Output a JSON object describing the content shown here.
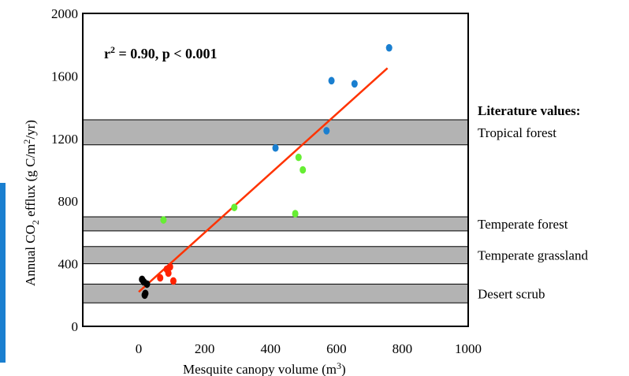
{
  "chart_data": {
    "type": "scatter",
    "xlabel_text": "Mesquite canopy volume (m",
    "xlabel_sup": "3",
    "xlabel_end": ")",
    "ylabel_parts": [
      "Annual CO",
      "2",
      " efflux (g C/m",
      "2",
      "/yr)"
    ],
    "xlim": [
      -170,
      1000
    ],
    "ylim": [
      0,
      2000
    ],
    "xticks": [
      0,
      200,
      400,
      600,
      800,
      1000
    ],
    "yticks": [
      0,
      400,
      800,
      1200,
      1600,
      2000
    ],
    "annotation": {
      "pre": "r",
      "sup": "2",
      "post": " = 0.90, p < 0.001"
    },
    "literature_title": "Literature values:",
    "bands": [
      {
        "label": "Tropical forest",
        "y0": 1160,
        "y1": 1320
      },
      {
        "label": "Temperate forest",
        "y0": 610,
        "y1": 700
      },
      {
        "label": "Temperate grassland",
        "y0": 400,
        "y1": 510
      },
      {
        "label": "Desert scrub",
        "y0": 150,
        "y1": 270
      }
    ],
    "band_color": "#b3b3b3",
    "regression": {
      "x": [
        0,
        755
      ],
      "y": [
        220,
        1650
      ],
      "color": "#ff3300"
    },
    "series": [
      {
        "color": "#000000",
        "points": [
          [
            10,
            300
          ],
          [
            25,
            270
          ],
          [
            15,
            285
          ],
          [
            20,
            210
          ],
          [
            18,
            200
          ]
        ]
      },
      {
        "color": "#ff2200",
        "points": [
          [
            65,
            310
          ],
          [
            85,
            365
          ],
          [
            95,
            380
          ],
          [
            90,
            340
          ],
          [
            105,
            290
          ]
        ]
      },
      {
        "color": "#66ee33",
        "points": [
          [
            75,
            680
          ],
          [
            290,
            760
          ],
          [
            475,
            720
          ],
          [
            485,
            1080
          ],
          [
            498,
            1000
          ]
        ]
      },
      {
        "color": "#1a7fd0",
        "points": [
          [
            415,
            1140
          ],
          [
            570,
            1250
          ],
          [
            585,
            1570
          ],
          [
            655,
            1550
          ],
          [
            760,
            1780
          ]
        ]
      }
    ]
  }
}
